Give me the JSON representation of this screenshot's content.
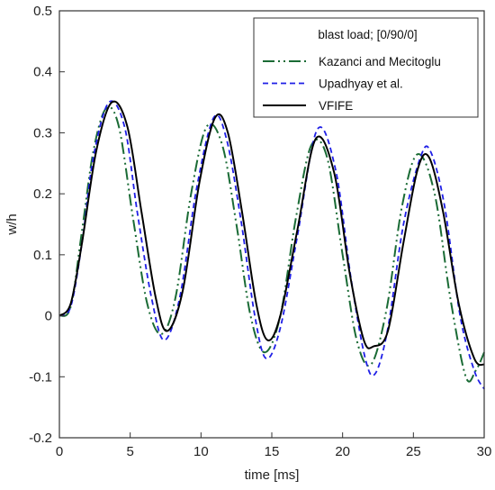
{
  "chart_data": {
    "type": "line",
    "title": "",
    "xlabel": "time [ms]",
    "ylabel": "w/h",
    "xlim": [
      0,
      30
    ],
    "ylim": [
      -0.2,
      0.5
    ],
    "xticks": [
      0,
      5,
      10,
      15,
      20,
      25,
      30
    ],
    "yticks": [
      -0.2,
      -0.1,
      0,
      0.1,
      0.2,
      0.3,
      0.4,
      0.5
    ],
    "xtick_labels": [
      "0",
      "5",
      "10",
      "15",
      "20",
      "25",
      "30"
    ],
    "ytick_labels": [
      "-0.2",
      "-0.1",
      "0",
      "0.1",
      "0.2",
      "0.3",
      "0.4",
      "0.5"
    ],
    "grid": false,
    "legend": {
      "title": "blast load; [0/90/0]",
      "position": "top-right"
    },
    "series": [
      {
        "name": "Kazanci and Mecitoglu",
        "color": "#1a6b35",
        "style": "dash-dot-dot",
        "x": [
          0,
          0.8,
          1.6,
          2.4,
          3.3,
          4.2,
          5.2,
          6.2,
          7.2,
          8.2,
          9.3,
          10.4,
          11.5,
          12.5,
          13.5,
          14.5,
          15.6,
          16.7,
          17.8,
          18.9,
          20.0,
          21.0,
          22.0,
          23.1,
          24.2,
          25.3,
          26.5,
          27.6,
          28.7,
          29.4,
          30.0
        ],
        "y": [
          0,
          0.015,
          0.14,
          0.27,
          0.34,
          0.31,
          0.16,
          0.02,
          -0.03,
          0.03,
          0.2,
          0.31,
          0.28,
          0.15,
          0.0,
          -0.06,
          0.0,
          0.16,
          0.28,
          0.26,
          0.1,
          -0.04,
          -0.08,
          0.01,
          0.18,
          0.265,
          0.2,
          0.03,
          -0.1,
          -0.09,
          -0.06
        ]
      },
      {
        "name": "Upadhyay et al.",
        "color": "#1f1fe6",
        "style": "dash",
        "x": [
          0,
          0.8,
          1.6,
          2.4,
          3.5,
          4.6,
          5.5,
          6.5,
          7.4,
          8.5,
          9.7,
          10.9,
          11.8,
          12.8,
          13.8,
          14.6,
          15.6,
          16.8,
          18.2,
          19.5,
          20.6,
          21.6,
          22.3,
          23.2,
          24.3,
          25.5,
          26.2,
          27.2,
          28.3,
          29.3,
          30.0
        ],
        "y": [
          0,
          0.015,
          0.12,
          0.26,
          0.35,
          0.31,
          0.17,
          0.03,
          -0.04,
          0.03,
          0.21,
          0.325,
          0.29,
          0.16,
          0.0,
          -0.07,
          -0.02,
          0.13,
          0.305,
          0.24,
          0.06,
          -0.07,
          -0.095,
          -0.02,
          0.15,
          0.26,
          0.27,
          0.18,
          0.0,
          -0.09,
          -0.12
        ]
      },
      {
        "name": "VFIFE",
        "color": "#000000",
        "style": "solid",
        "x": [
          0,
          0.8,
          1.6,
          2.6,
          3.7,
          4.8,
          5.8,
          6.8,
          7.6,
          8.7,
          9.9,
          11.0,
          11.9,
          12.9,
          13.9,
          14.7,
          15.6,
          16.8,
          18.1,
          19.4,
          20.5,
          21.5,
          22.2,
          23.2,
          24.3,
          25.3,
          26.1,
          27.1,
          28.2,
          29.3,
          30.0
        ],
        "y": [
          0,
          0.02,
          0.12,
          0.27,
          0.35,
          0.31,
          0.17,
          0.03,
          -0.025,
          0.04,
          0.22,
          0.325,
          0.3,
          0.17,
          0.02,
          -0.04,
          0.0,
          0.14,
          0.29,
          0.235,
          0.07,
          -0.04,
          -0.05,
          -0.025,
          0.12,
          0.24,
          0.26,
          0.17,
          0.02,
          -0.07,
          -0.08
        ]
      }
    ]
  }
}
